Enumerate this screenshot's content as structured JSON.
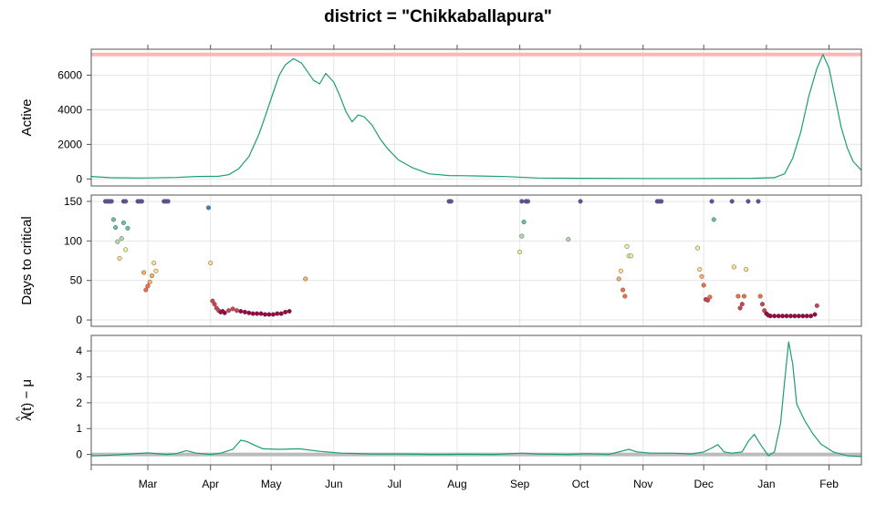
{
  "chart_data": {
    "type": "line",
    "title": "district = \"Chikkaballapura\"",
    "x_axis": {
      "range": [
        "2021-02-01",
        "2022-02-17"
      ],
      "tick_labels": [
        "Mar",
        "Apr",
        "May",
        "Jun",
        "Jul",
        "Aug",
        "Sep",
        "Oct",
        "Nov",
        "Dec",
        "Jan",
        "Feb"
      ],
      "tick_dates": [
        "2021-03-01",
        "2021-04-01",
        "2021-05-01",
        "2021-06-01",
        "2021-07-01",
        "2021-08-01",
        "2021-09-01",
        "2021-10-01",
        "2021-11-01",
        "2021-12-01",
        "2022-01-01",
        "2022-02-01"
      ],
      "grid": true
    },
    "panels": [
      {
        "id": "active",
        "ylabel": "Active",
        "type": "line",
        "ylim": [
          -400,
          7500
        ],
        "yticks": [
          0,
          2000,
          4000,
          6000
        ],
        "line_color": "#1b9e77",
        "reference_line": {
          "y": 7200,
          "color": "#ffb6b6"
        },
        "series": [
          {
            "points": [
              [
                "2021-02-01",
                150
              ],
              [
                "2021-02-10",
                80
              ],
              [
                "2021-02-25",
                60
              ],
              [
                "2021-03-15",
                90
              ],
              [
                "2021-03-25",
                150
              ],
              [
                "2021-04-05",
                160
              ],
              [
                "2021-04-10",
                250
              ],
              [
                "2021-04-15",
                600
              ],
              [
                "2021-04-20",
                1300
              ],
              [
                "2021-04-25",
                2600
              ],
              [
                "2021-04-28",
                3600
              ],
              [
                "2021-05-02",
                5000
              ],
              [
                "2021-05-05",
                6000
              ],
              [
                "2021-05-08",
                6600
              ],
              [
                "2021-05-12",
                6950
              ],
              [
                "2021-05-16",
                6700
              ],
              [
                "2021-05-19",
                6200
              ],
              [
                "2021-05-22",
                5700
              ],
              [
                "2021-05-25",
                5500
              ],
              [
                "2021-05-28",
                6100
              ],
              [
                "2021-06-01",
                5600
              ],
              [
                "2021-06-04",
                4800
              ],
              [
                "2021-06-07",
                3900
              ],
              [
                "2021-06-10",
                3300
              ],
              [
                "2021-06-13",
                3700
              ],
              [
                "2021-06-16",
                3600
              ],
              [
                "2021-06-20",
                3100
              ],
              [
                "2021-06-24",
                2300
              ],
              [
                "2021-06-28",
                1700
              ],
              [
                "2021-07-03",
                1100
              ],
              [
                "2021-07-10",
                650
              ],
              [
                "2021-07-18",
                300
              ],
              [
                "2021-07-28",
                200
              ],
              [
                "2021-08-10",
                180
              ],
              [
                "2021-08-25",
                140
              ],
              [
                "2021-09-10",
                60
              ],
              [
                "2021-10-01",
                40
              ],
              [
                "2021-11-01",
                30
              ],
              [
                "2021-12-01",
                30
              ],
              [
                "2021-12-25",
                40
              ],
              [
                "2022-01-05",
                80
              ],
              [
                "2022-01-10",
                300
              ],
              [
                "2022-01-14",
                1200
              ],
              [
                "2022-01-18",
                2700
              ],
              [
                "2022-01-22",
                4800
              ],
              [
                "2022-01-26",
                6400
              ],
              [
                "2022-01-29",
                7200
              ],
              [
                "2022-02-01",
                6400
              ],
              [
                "2022-02-04",
                4700
              ],
              [
                "2022-02-07",
                3000
              ],
              [
                "2022-02-10",
                1800
              ],
              [
                "2022-02-13",
                1000
              ],
              [
                "2022-02-17",
                500
              ]
            ]
          }
        ]
      },
      {
        "id": "days-to-critical",
        "ylabel": "Days to critical",
        "type": "scatter",
        "ylim": [
          -8,
          158
        ],
        "yticks": [
          0,
          50,
          100,
          150
        ],
        "color_scale": [
          "#9e0142",
          "#d53e4f",
          "#f46d43",
          "#fdae61",
          "#fee08b",
          "#e6f598",
          "#abdda4",
          "#66c2a5",
          "#3288bd",
          "#5e4fa2"
        ],
        "points": [
          [
            "2021-02-08",
            150
          ],
          [
            "2021-02-09",
            150
          ],
          [
            "2021-02-10",
            150
          ],
          [
            "2021-02-11",
            150
          ],
          [
            "2021-02-17",
            150
          ],
          [
            "2021-02-18",
            150
          ],
          [
            "2021-02-24",
            150
          ],
          [
            "2021-02-25",
            150
          ],
          [
            "2021-02-26",
            150
          ],
          [
            "2021-03-09",
            150
          ],
          [
            "2021-03-10",
            150
          ],
          [
            "2021-03-11",
            150
          ],
          [
            "2021-02-12",
            127
          ],
          [
            "2021-02-13",
            117
          ],
          [
            "2021-02-14",
            99
          ],
          [
            "2021-02-15",
            78
          ],
          [
            "2021-02-16",
            103
          ],
          [
            "2021-02-17",
            123
          ],
          [
            "2021-02-18",
            89
          ],
          [
            "2021-02-19",
            116
          ],
          [
            "2021-02-27",
            60
          ],
          [
            "2021-02-28",
            38
          ],
          [
            "2021-03-01",
            43
          ],
          [
            "2021-03-02",
            48
          ],
          [
            "2021-03-03",
            56
          ],
          [
            "2021-03-04",
            72
          ],
          [
            "2021-03-05",
            62
          ],
          [
            "2021-03-31",
            142
          ],
          [
            "2021-04-01",
            72
          ],
          [
            "2021-04-02",
            24
          ],
          [
            "2021-04-03",
            20
          ],
          [
            "2021-04-04",
            15
          ],
          [
            "2021-04-05",
            12
          ],
          [
            "2021-04-06",
            10
          ],
          [
            "2021-04-07",
            11
          ],
          [
            "2021-04-08",
            9
          ],
          [
            "2021-04-10",
            12
          ],
          [
            "2021-04-12",
            14
          ],
          [
            "2021-04-14",
            12
          ],
          [
            "2021-04-16",
            11
          ],
          [
            "2021-04-18",
            10
          ],
          [
            "2021-04-20",
            9
          ],
          [
            "2021-04-22",
            8
          ],
          [
            "2021-04-24",
            8
          ],
          [
            "2021-04-26",
            8
          ],
          [
            "2021-04-28",
            7
          ],
          [
            "2021-04-30",
            7
          ],
          [
            "2021-05-02",
            7
          ],
          [
            "2021-05-04",
            8
          ],
          [
            "2021-05-06",
            8
          ],
          [
            "2021-05-08",
            10
          ],
          [
            "2021-05-10",
            11
          ],
          [
            "2021-05-18",
            52
          ],
          [
            "2021-07-28",
            150
          ],
          [
            "2021-07-29",
            150
          ],
          [
            "2021-09-02",
            150
          ],
          [
            "2021-09-04",
            150
          ],
          [
            "2021-09-05",
            150
          ],
          [
            "2021-09-01",
            86
          ],
          [
            "2021-09-02",
            106
          ],
          [
            "2021-09-03",
            124
          ],
          [
            "2021-09-25",
            102
          ],
          [
            "2021-10-01",
            150
          ],
          [
            "2021-10-20",
            52
          ],
          [
            "2021-10-21",
            62
          ],
          [
            "2021-10-22",
            38
          ],
          [
            "2021-10-23",
            30
          ],
          [
            "2021-10-24",
            93
          ],
          [
            "2021-10-25",
            81
          ],
          [
            "2021-10-26",
            81
          ],
          [
            "2021-11-08",
            150
          ],
          [
            "2021-11-09",
            150
          ],
          [
            "2021-11-10",
            150
          ],
          [
            "2021-11-28",
            91
          ],
          [
            "2021-11-29",
            64
          ],
          [
            "2021-11-30",
            55
          ],
          [
            "2021-12-01",
            44
          ],
          [
            "2021-12-02",
            26
          ],
          [
            "2021-12-03",
            25
          ],
          [
            "2021-12-04",
            29
          ],
          [
            "2021-12-05",
            150
          ],
          [
            "2021-12-06",
            127
          ],
          [
            "2021-12-15",
            150
          ],
          [
            "2021-12-16",
            67
          ],
          [
            "2021-12-18",
            30
          ],
          [
            "2021-12-19",
            15
          ],
          [
            "2021-12-20",
            20
          ],
          [
            "2021-12-21",
            30
          ],
          [
            "2021-12-22",
            64
          ],
          [
            "2021-12-23",
            150
          ],
          [
            "2021-12-28",
            150
          ],
          [
            "2021-12-29",
            30
          ],
          [
            "2021-12-30",
            20
          ],
          [
            "2021-12-31",
            12
          ],
          [
            "2022-01-01",
            8
          ],
          [
            "2022-01-02",
            6
          ],
          [
            "2022-01-03",
            5
          ],
          [
            "2022-01-05",
            5
          ],
          [
            "2022-01-07",
            5
          ],
          [
            "2022-01-09",
            5
          ],
          [
            "2022-01-11",
            5
          ],
          [
            "2022-01-13",
            5
          ],
          [
            "2022-01-15",
            5
          ],
          [
            "2022-01-17",
            5
          ],
          [
            "2022-01-19",
            5
          ],
          [
            "2022-01-21",
            5
          ],
          [
            "2022-01-23",
            5
          ],
          [
            "2022-01-25",
            7
          ],
          [
            "2022-01-26",
            18
          ]
        ]
      },
      {
        "id": "lambda",
        "ylabel_parts": [
          "λ",
          "^",
          "(t) − μ"
        ],
        "type": "line",
        "ylim": [
          -0.4,
          4.6
        ],
        "yticks": [
          0,
          1,
          2,
          3,
          4
        ],
        "line_color": "#1b9e77",
        "reference_line": {
          "y": 0,
          "color": "#bbbbbb"
        },
        "series": [
          {
            "points": [
              [
                "2021-02-01",
                -0.05
              ],
              [
                "2021-02-10",
                -0.03
              ],
              [
                "2021-02-20",
                0.02
              ],
              [
                "2021-03-01",
                0.06
              ],
              [
                "2021-03-10",
                0.0
              ],
              [
                "2021-03-15",
                0.03
              ],
              [
                "2021-03-20",
                0.15
              ],
              [
                "2021-03-25",
                0.05
              ],
              [
                "2021-04-01",
                0.0
              ],
              [
                "2021-04-06",
                0.05
              ],
              [
                "2021-04-12",
                0.2
              ],
              [
                "2021-04-16",
                0.55
              ],
              [
                "2021-04-19",
                0.5
              ],
              [
                "2021-04-23",
                0.35
              ],
              [
                "2021-04-27",
                0.22
              ],
              [
                "2021-05-05",
                0.2
              ],
              [
                "2021-05-15",
                0.22
              ],
              [
                "2021-05-25",
                0.12
              ],
              [
                "2021-06-05",
                0.05
              ],
              [
                "2021-06-20",
                0.02
              ],
              [
                "2021-07-05",
                0.02
              ],
              [
                "2021-07-20",
                0.0
              ],
              [
                "2021-08-05",
                0.01
              ],
              [
                "2021-08-20",
                0.0
              ],
              [
                "2021-09-02",
                0.05
              ],
              [
                "2021-09-10",
                0.02
              ],
              [
                "2021-09-25",
                0.0
              ],
              [
                "2021-10-05",
                0.03
              ],
              [
                "2021-10-15",
                0.0
              ],
              [
                "2021-10-25",
                0.2
              ],
              [
                "2021-10-29",
                0.1
              ],
              [
                "2021-11-05",
                0.05
              ],
              [
                "2021-11-15",
                0.05
              ],
              [
                "2021-11-25",
                0.02
              ],
              [
                "2021-12-01",
                0.1
              ],
              [
                "2021-12-05",
                0.25
              ],
              [
                "2021-12-08",
                0.38
              ],
              [
                "2021-12-11",
                0.1
              ],
              [
                "2021-12-15",
                0.05
              ],
              [
                "2021-12-20",
                0.1
              ],
              [
                "2021-12-23",
                0.5
              ],
              [
                "2021-12-26",
                0.78
              ],
              [
                "2021-12-29",
                0.4
              ],
              [
                "2022-01-02",
                -0.05
              ],
              [
                "2022-01-05",
                0.1
              ],
              [
                "2022-01-08",
                1.2
              ],
              [
                "2022-01-10",
                2.8
              ],
              [
                "2022-01-12",
                4.35
              ],
              [
                "2022-01-14",
                3.5
              ],
              [
                "2022-01-16",
                1.95
              ],
              [
                "2022-01-20",
                1.3
              ],
              [
                "2022-01-24",
                0.8
              ],
              [
                "2022-01-28",
                0.4
              ],
              [
                "2022-02-03",
                0.1
              ],
              [
                "2022-02-10",
                -0.05
              ],
              [
                "2022-02-17",
                -0.08
              ]
            ]
          }
        ]
      }
    ]
  }
}
